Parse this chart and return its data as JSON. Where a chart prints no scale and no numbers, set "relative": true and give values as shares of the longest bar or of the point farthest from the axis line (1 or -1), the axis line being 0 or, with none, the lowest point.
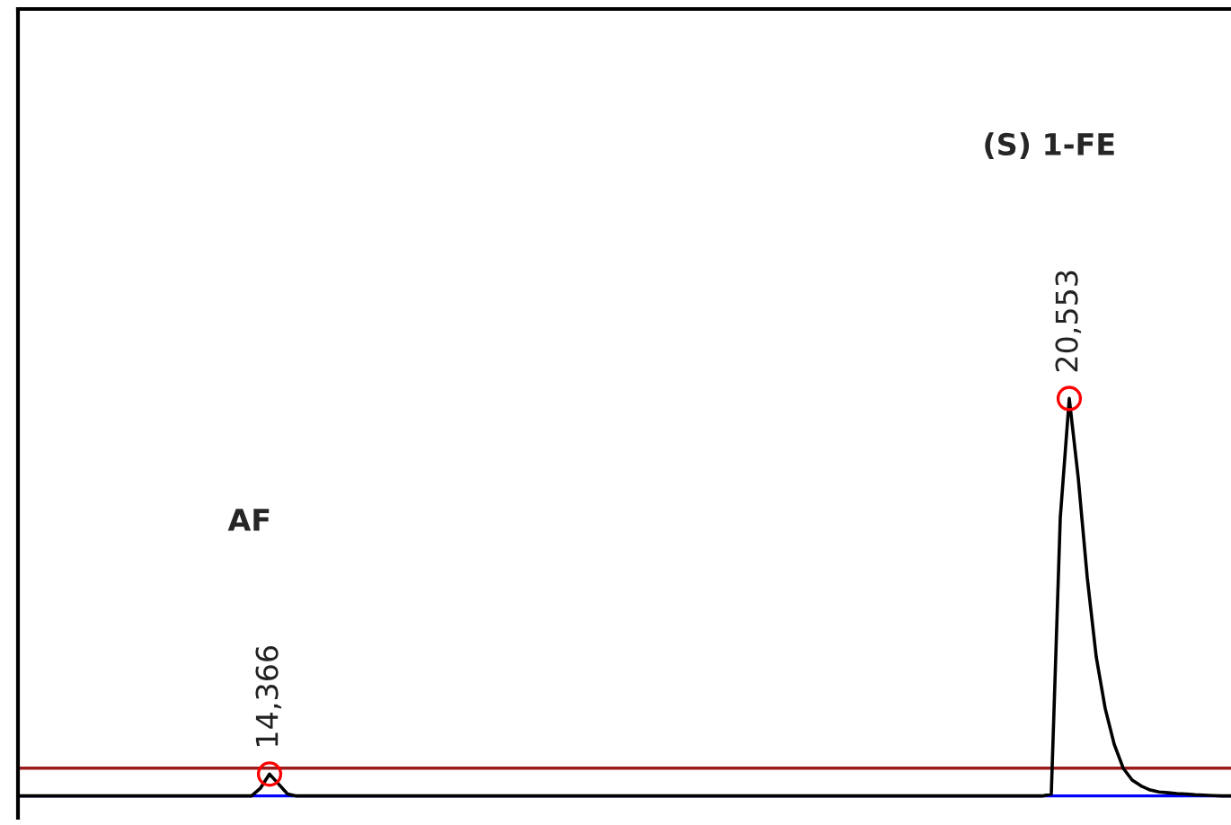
{
  "chart_data": {
    "type": "line",
    "relative": true,
    "legend": false,
    "marker": "none",
    "line_style": "solid",
    "categories": [
      null,
      null,
      null,
      null,
      null,
      null,
      null,
      null,
      null,
      null,
      null,
      null,
      null,
      null,
      null,
      null,
      null,
      null,
      null,
      null,
      null,
      null,
      null,
      null,
      null,
      null,
      null,
      null,
      null,
      null,
      null,
      null,
      null,
      null,
      null,
      null,
      null,
      null,
      null,
      null,
      null,
      null,
      null,
      null,
      null,
      null,
      null,
      null,
      null,
      null,
      null,
      null,
      null,
      null,
      null,
      null,
      null,
      null,
      null,
      null,
      null,
      null,
      null,
      null,
      null,
      null,
      null,
      null,
      null,
      null,
      null,
      null,
      null,
      null,
      null,
      null,
      null,
      null,
      null,
      null,
      null,
      null,
      null,
      null,
      null,
      null,
      null,
      null,
      null,
      null,
      null,
      null,
      null,
      null,
      null,
      null,
      null,
      null,
      null,
      null,
      null,
      null,
      null,
      null,
      null,
      null,
      null,
      null,
      null,
      null,
      null,
      null,
      null,
      null,
      null,
      null,
      null,
      null,
      null,
      null,
      null,
      null,
      null,
      null,
      null,
      null,
      null,
      null,
      null,
      null,
      null,
      null,
      null,
      null,
      null,
      null
    ],
    "series": [
      {
        "color": "#000000",
        "values": [
          0,
          0,
          0,
          0,
          0,
          0,
          0,
          0,
          0,
          0,
          0,
          0,
          0,
          0,
          0,
          0,
          0,
          0,
          0,
          0,
          0,
          0,
          0,
          0,
          0,
          0,
          0,
          0.02,
          0.055,
          0.03,
          0.005,
          0,
          0,
          0,
          0,
          0,
          0,
          0,
          0,
          0,
          0,
          0,
          0,
          0,
          0,
          0,
          0,
          0,
          0,
          0,
          0,
          0,
          0,
          0,
          0,
          0,
          0,
          0,
          0,
          0,
          0,
          0,
          0,
          0,
          0,
          0,
          0,
          0,
          0,
          0,
          0,
          0,
          0,
          0,
          0,
          0,
          0,
          0,
          0,
          0,
          0,
          0,
          0,
          0,
          0,
          0,
          0,
          0,
          0,
          0,
          0,
          0,
          0,
          0,
          0,
          0,
          0,
          0,
          0,
          0,
          0,
          0,
          0,
          0,
          0,
          0,
          0,
          0,
          0,
          0,
          0,
          0,
          0,
          0,
          0,
          0.005,
          0.7,
          1.0,
          0.8,
          0.55,
          0.35,
          0.22,
          0.13,
          0.07,
          0.04,
          0.025,
          0.015,
          0.01,
          0.008,
          0.006,
          0.005,
          0.003,
          0.002,
          0.001,
          0,
          0
        ]
      }
    ],
    "ref_lines": [
      {
        "axis": "y",
        "value": 0.07,
        "color": "#9b1c1c"
      },
      {
        "axis": "y",
        "value": 0,
        "color": "#0000ff"
      }
    ],
    "annotations": [
      "14,366",
      "20,553",
      "AF",
      "(S) 1-FE"
    ]
  }
}
